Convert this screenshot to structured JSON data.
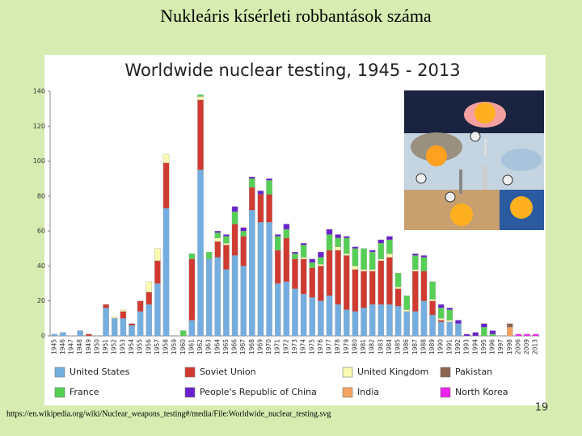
{
  "slide_title": "Nukleáris kísérleti robbantások száma",
  "footer_url": "https://en.wikipedia.org/wiki/Nuclear_weapons_testing#/media/File:Worldwide_nuclear_testing.svg",
  "page_number": "19",
  "chart_data": {
    "type": "stacked_bar",
    "title": "Worldwide nuclear testing, 1945 - 2013",
    "categories": [
      "1945",
      "1946",
      "1947",
      "1948",
      "1949",
      "1950",
      "1951",
      "1952",
      "1953",
      "1954",
      "1955",
      "1956",
      "1957",
      "1958",
      "1959",
      "1960",
      "1961",
      "1962",
      "1963",
      "1964",
      "1965",
      "1966",
      "1967",
      "1968",
      "1969",
      "1970",
      "1971",
      "1972",
      "1973",
      "1974",
      "1975",
      "1976",
      "1977",
      "1978",
      "1979",
      "1980",
      "1981",
      "1982",
      "1983",
      "1984",
      "1985",
      "1986",
      "1987",
      "1988",
      "1989",
      "1990",
      "1991",
      "1992",
      "1993",
      "1994",
      "1995",
      "1996",
      "1997",
      "1998",
      "2006",
      "2009",
      "2013"
    ],
    "series": [
      {
        "name": "United States",
        "color": "#74aee0",
        "values": [
          1,
          2,
          0,
          3,
          0,
          0,
          16,
          10,
          10,
          6,
          14,
          18,
          30,
          73,
          0,
          0,
          9,
          95,
          44,
          45,
          38,
          46,
          40,
          72,
          65,
          65,
          30,
          31,
          27,
          24,
          22,
          20,
          23,
          18,
          15,
          14,
          16,
          18,
          18,
          18,
          17,
          14,
          14,
          20,
          12,
          8,
          8,
          7,
          0,
          0,
          0,
          0,
          0,
          0,
          0,
          0,
          0
        ]
      },
      {
        "name": "Soviet Union",
        "color": "#d03a30",
        "values": [
          0,
          0,
          0,
          0,
          1,
          0,
          2,
          0,
          4,
          1,
          6,
          7,
          13,
          26,
          0,
          0,
          35,
          40,
          0,
          9,
          14,
          18,
          17,
          13,
          16,
          16,
          19,
          25,
          17,
          20,
          17,
          20,
          26,
          31,
          31,
          24,
          21,
          19,
          25,
          27,
          10,
          0,
          23,
          17,
          8,
          1,
          0,
          0,
          0,
          0,
          0,
          0,
          0,
          0,
          0,
          0,
          0
        ]
      },
      {
        "name": "United Kingdom",
        "color": "#fafab0",
        "values": [
          0,
          0,
          0,
          0,
          0,
          0,
          0,
          1,
          1,
          0,
          0,
          6,
          7,
          5,
          0,
          0,
          0,
          2,
          0,
          2,
          1,
          0,
          0,
          0,
          0,
          0,
          0,
          0,
          0,
          1,
          0,
          1,
          0,
          2,
          1,
          2,
          1,
          1,
          1,
          2,
          1,
          1,
          1,
          0,
          1,
          1,
          1,
          0,
          0,
          0,
          0,
          0,
          0,
          0,
          0,
          0,
          0
        ]
      },
      {
        "name": "France",
        "color": "#55d055",
        "values": [
          0,
          0,
          0,
          0,
          0,
          0,
          0,
          0,
          0,
          0,
          0,
          0,
          0,
          0,
          0,
          3,
          3,
          1,
          4,
          3,
          4,
          7,
          3,
          5,
          0,
          8,
          8,
          5,
          3,
          7,
          3,
          4,
          9,
          5,
          9,
          10,
          12,
          10,
          9,
          8,
          8,
          8,
          8,
          8,
          10,
          6,
          6,
          0,
          0,
          0,
          5,
          1,
          0,
          0,
          0,
          0,
          0
        ]
      },
      {
        "name": "People's Republic of China",
        "color": "#6a22cc",
        "values": [
          0,
          0,
          0,
          0,
          0,
          0,
          0,
          0,
          0,
          0,
          0,
          0,
          0,
          0,
          0,
          0,
          0,
          0,
          0,
          1,
          1,
          3,
          2,
          1,
          2,
          1,
          1,
          3,
          1,
          1,
          2,
          3,
          3,
          2,
          1,
          1,
          0,
          1,
          2,
          2,
          0,
          0,
          1,
          1,
          0,
          2,
          1,
          2,
          1,
          2,
          2,
          2,
          0,
          0,
          0,
          0,
          0
        ]
      },
      {
        "name": "India",
        "color": "#f4a460",
        "values": [
          0,
          0,
          0,
          0,
          0,
          0,
          0,
          0,
          0,
          0,
          0,
          0,
          0,
          0,
          0,
          0,
          0,
          0,
          0,
          0,
          0,
          0,
          0,
          0,
          0,
          0,
          0,
          0,
          0,
          0,
          0,
          0,
          0,
          0,
          0,
          0,
          0,
          0,
          0,
          0,
          0,
          0,
          0,
          0,
          0,
          0,
          0,
          0,
          0,
          0,
          0,
          0,
          0,
          5,
          0,
          0,
          0
        ]
      },
      {
        "name": "Pakistan",
        "color": "#8c6450",
        "values": [
          0,
          0,
          0,
          0,
          0,
          0,
          0,
          0,
          0,
          0,
          0,
          0,
          0,
          0,
          0,
          0,
          0,
          0,
          0,
          0,
          0,
          0,
          0,
          0,
          0,
          0,
          0,
          0,
          0,
          0,
          0,
          0,
          0,
          0,
          0,
          0,
          0,
          0,
          0,
          0,
          0,
          0,
          0,
          0,
          0,
          0,
          0,
          0,
          0,
          0,
          0,
          0,
          0,
          2,
          0,
          0,
          0
        ]
      },
      {
        "name": "North Korea",
        "color": "#ee22ee",
        "values": [
          0,
          0,
          0,
          0,
          0,
          0,
          0,
          0,
          0,
          0,
          0,
          0,
          0,
          0,
          0,
          0,
          0,
          0,
          0,
          0,
          0,
          0,
          0,
          0,
          0,
          0,
          0,
          0,
          0,
          0,
          0,
          0,
          0,
          0,
          0,
          0,
          0,
          0,
          0,
          0,
          0,
          0,
          0,
          0,
          0,
          0,
          0,
          0,
          0,
          0,
          0,
          0,
          0,
          0,
          1,
          1,
          1
        ]
      }
    ],
    "ylim": [
      0,
      140
    ],
    "yticks": [
      0,
      20,
      40,
      60,
      80,
      100,
      120,
      140
    ],
    "grid": false
  }
}
